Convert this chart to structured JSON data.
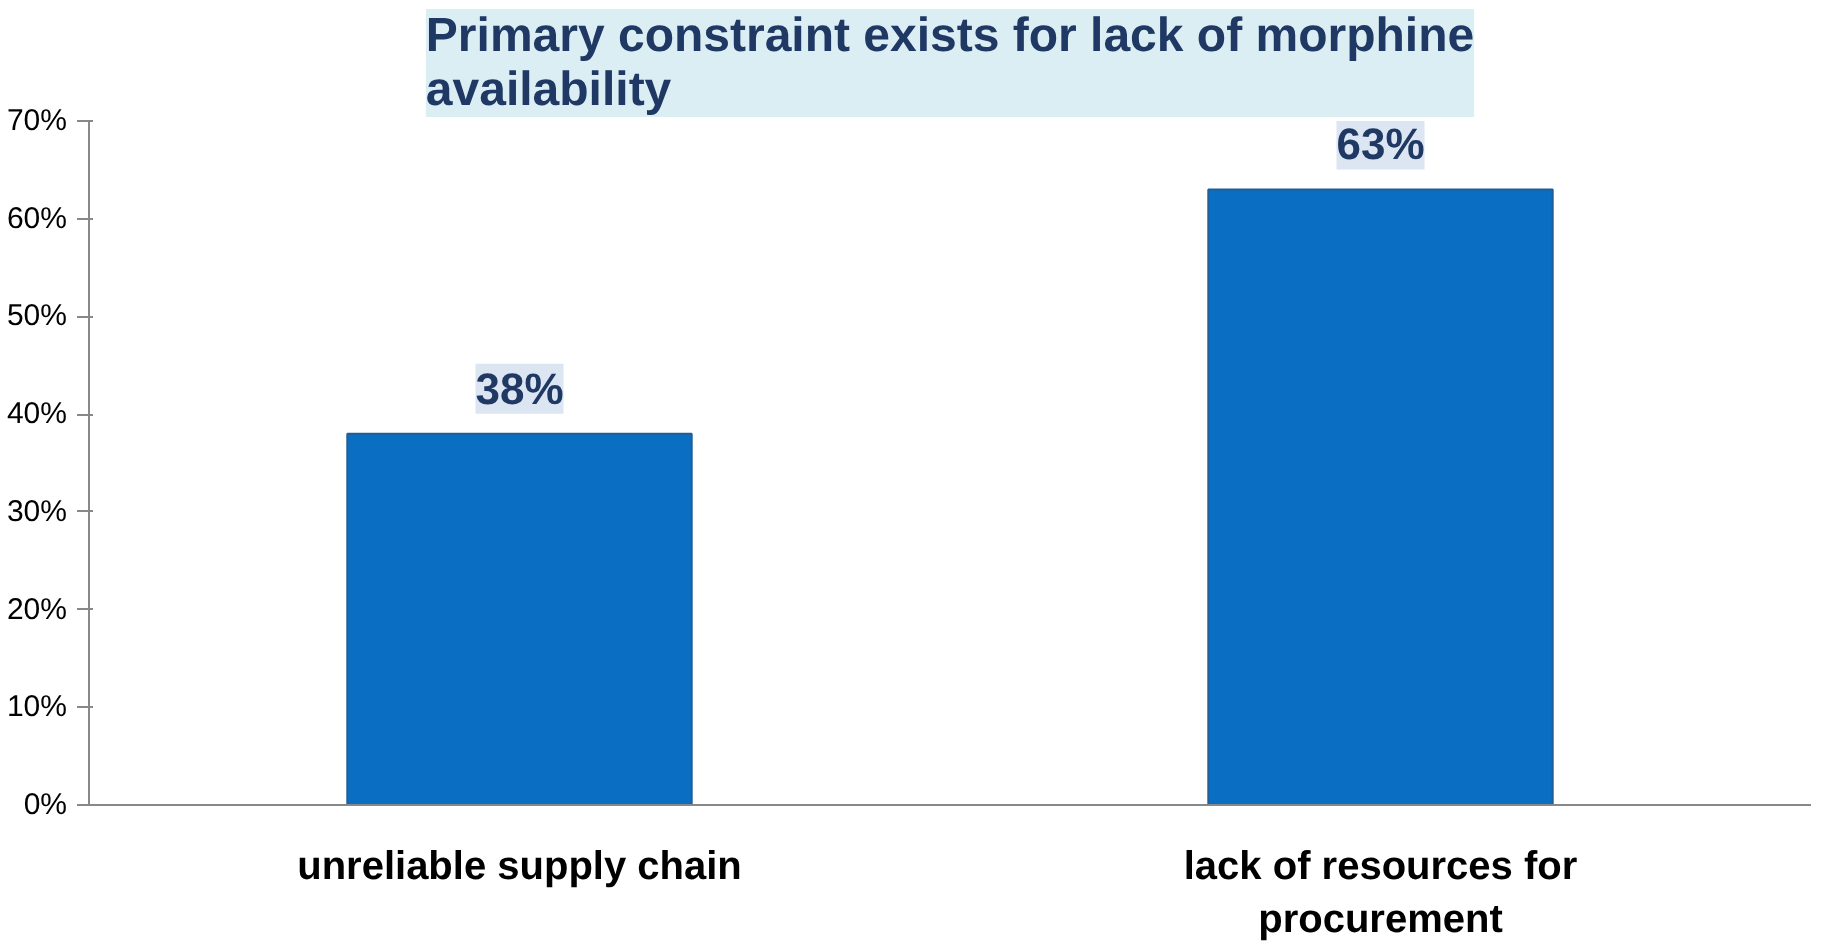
{
  "chart_data": {
    "type": "bar",
    "title": "Primary constraint exists for lack of morphine availability",
    "categories": [
      "unreliable supply chain",
      "lack of resources for procurement"
    ],
    "values": [
      38,
      63
    ],
    "value_labels": [
      "38%",
      "63%"
    ],
    "color": "#0a6fc2",
    "ylim": [
      0,
      70
    ],
    "yticks": [
      {
        "value": 0,
        "label": "0%"
      },
      {
        "value": 10,
        "label": "10%"
      },
      {
        "value": 20,
        "label": "20%"
      },
      {
        "value": 30,
        "label": "30%"
      },
      {
        "value": 40,
        "label": "40%"
      },
      {
        "value": 50,
        "label": "50%"
      },
      {
        "value": 60,
        "label": "60%"
      },
      {
        "value": 70,
        "label": "70%"
      }
    ],
    "grid": false
  }
}
